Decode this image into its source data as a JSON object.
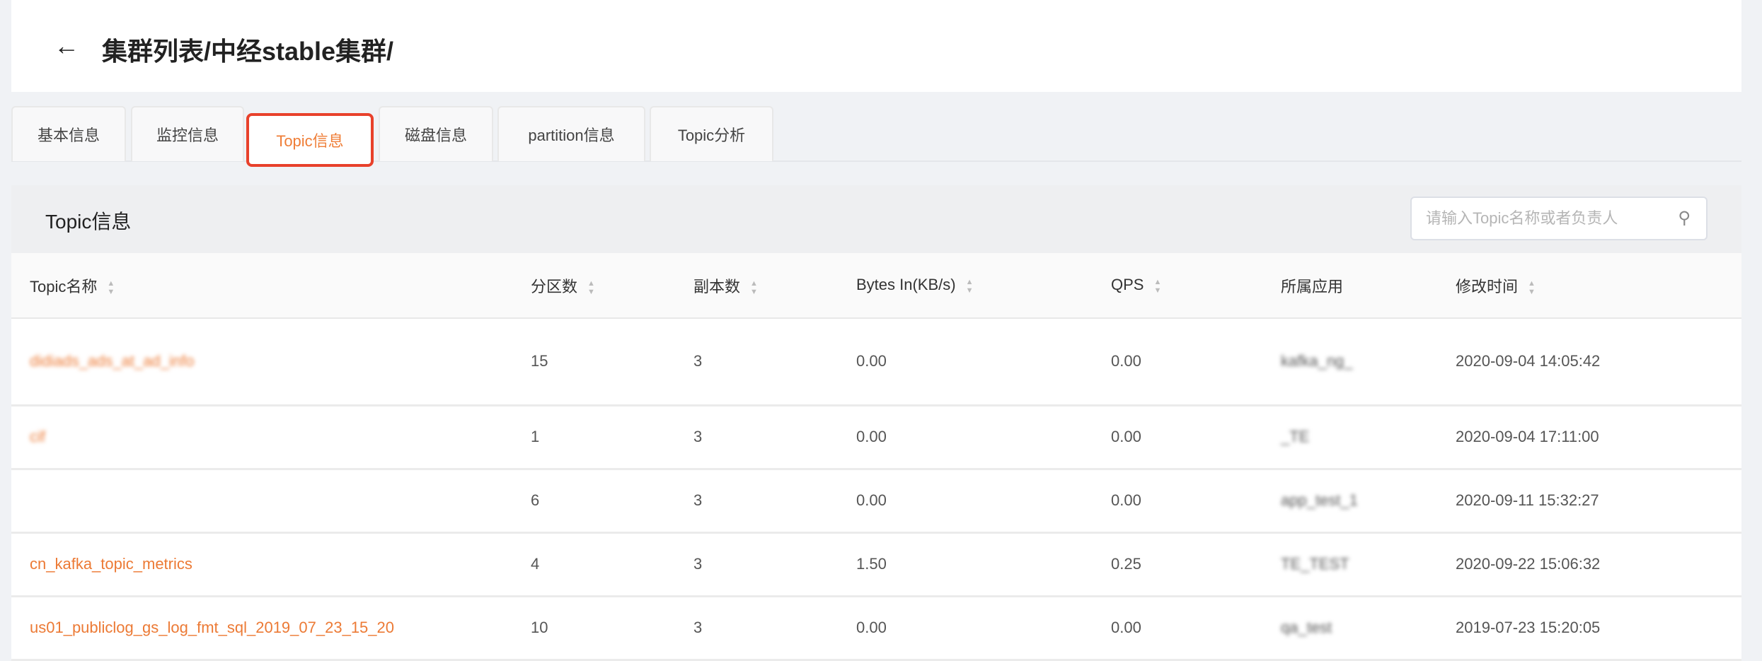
{
  "header": {
    "back_icon": "arrow-left-icon",
    "title": "集群列表/中经stable集群/"
  },
  "tabs": [
    {
      "label": "基本信息"
    },
    {
      "label": "监控信息"
    },
    {
      "label": "Topic信息",
      "active": true
    },
    {
      "label": "磁盘信息"
    },
    {
      "label": "partition信息"
    },
    {
      "label": "Topic分析"
    }
  ],
  "panel": {
    "title": "Topic信息",
    "search_placeholder": "请输入Topic名称或者负责人",
    "search_value": "",
    "search_icon": "search-icon"
  },
  "colors": {
    "accent": "#ec7a35",
    "highlight_border": "#e8412b"
  },
  "table": {
    "columns": [
      "Topic名称",
      "分区数",
      "副本数",
      "Bytes In(KB/s)",
      "QPS",
      "所属应用",
      "修改时间"
    ],
    "rows": [
      {
        "topic": "didiads_ads_at_ad_info",
        "partitions": "15",
        "replicas": "3",
        "bytes_in": "0.00",
        "qps": "0.00",
        "app": "kafka_ng_",
        "modified": "2020-09-04 14:05:42"
      },
      {
        "topic": "cif",
        "partitions": "1",
        "replicas": "3",
        "bytes_in": "0.00",
        "qps": "0.00",
        "app": "_TE",
        "modified": "2020-09-04 17:11:00"
      },
      {
        "topic": "",
        "partitions": "6",
        "replicas": "3",
        "bytes_in": "0.00",
        "qps": "0.00",
        "app": "app_test_1",
        "modified": "2020-09-11 15:32:27"
      },
      {
        "topic": "cn_kafka_topic_metrics",
        "partitions": "4",
        "replicas": "3",
        "bytes_in": "1.50",
        "qps": "0.25",
        "app": "TE_TEST",
        "modified": "2020-09-22 15:06:32"
      },
      {
        "topic": "us01_publiclog_gs_log_fmt_sql_2019_07_23_15_20",
        "partitions": "10",
        "replicas": "3",
        "bytes_in": "0.00",
        "qps": "0.00",
        "app": "qa_test",
        "modified": "2019-07-23 15:20:05"
      }
    ]
  }
}
